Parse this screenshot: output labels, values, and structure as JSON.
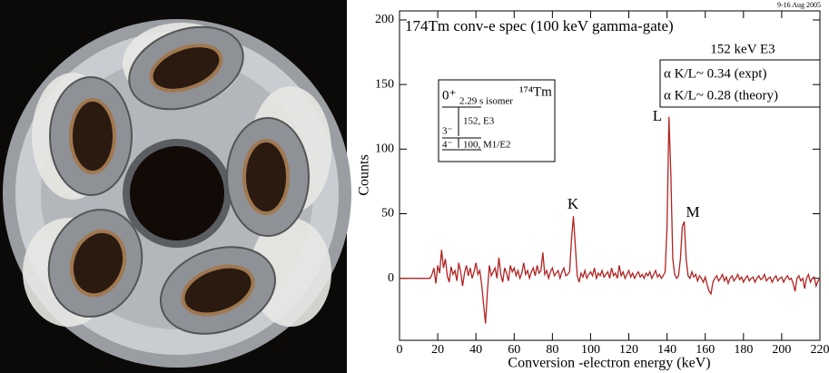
{
  "chart_data": {
    "type": "line",
    "title": "174Tm conv-e spec (100 keV gamma-gate)",
    "date": "9-16 Aug 2005",
    "xlabel": "Conversion -electron energy (keV)",
    "ylabel": "Counts",
    "annotations": {
      "gate": "152 keV E3",
      "expt": "α K/L~ 0.34 (expt)",
      "theory": "α K/L~ 0.28 (theory)",
      "peaks": [
        "K",
        "L",
        "M"
      ],
      "scheme": [
        "0⁺",
        "2.29 s isomer",
        "¹⁷⁴Tm",
        "3⁻",
        "152, E3",
        "4⁻",
        "100, M1/E2"
      ]
    },
    "color": "#b22222",
    "xlim": [
      0,
      220
    ],
    "xticks": [
      0,
      20,
      40,
      60,
      80,
      100,
      120,
      140,
      160,
      180,
      200,
      220
    ],
    "ylim": [
      -48,
      207
    ],
    "yticks": [
      0,
      50,
      100,
      150,
      200
    ],
    "x": [
      0,
      16,
      17,
      18,
      19,
      20,
      21,
      22,
      23,
      24,
      25,
      26,
      27,
      28,
      29,
      30,
      31,
      32,
      33,
      34,
      35,
      36,
      37,
      38,
      39,
      40,
      41,
      42,
      43,
      44,
      45,
      46,
      47,
      48,
      49,
      50,
      51,
      52,
      53,
      54,
      55,
      56,
      57,
      58,
      59,
      60,
      61,
      62,
      63,
      64,
      65,
      66,
      67,
      68,
      69,
      70,
      71,
      72,
      73,
      74,
      75,
      76,
      77,
      78,
      79,
      80,
      81,
      82,
      83,
      84,
      85,
      86,
      87,
      88,
      89,
      90,
      91,
      92,
      93,
      94,
      95,
      96,
      97,
      98,
      99,
      100,
      101,
      102,
      103,
      104,
      105,
      106,
      107,
      108,
      109,
      110,
      111,
      112,
      113,
      114,
      115,
      116,
      117,
      118,
      119,
      120,
      121,
      122,
      123,
      124,
      125,
      126,
      127,
      128,
      129,
      130,
      131,
      132,
      133,
      134,
      135,
      136,
      137,
      138,
      139,
      140,
      141,
      142,
      143,
      144,
      145,
      146,
      147,
      148,
      149,
      150,
      151,
      152,
      153,
      154,
      155,
      156,
      157,
      158,
      159,
      160,
      161,
      162,
      163,
      164,
      165,
      166,
      167,
      168,
      169,
      170,
      171,
      172,
      173,
      174,
      175,
      176,
      177,
      178,
      179,
      180,
      181,
      182,
      183,
      184,
      185,
      186,
      187,
      188,
      189,
      190,
      191,
      192,
      193,
      194,
      195,
      196,
      197,
      198,
      199,
      200,
      201,
      202,
      203,
      204,
      205,
      206,
      207,
      208,
      209,
      210,
      211,
      212,
      213,
      214,
      215,
      216,
      217,
      218,
      219,
      220
    ],
    "values": [
      0,
      0,
      3,
      8,
      -4,
      10,
      4,
      22,
      8,
      15,
      2,
      -3,
      9,
      3,
      6,
      -2,
      12,
      5,
      -6,
      4,
      10,
      2,
      8,
      0,
      5,
      12,
      3,
      6,
      -5,
      -20,
      -35,
      -10,
      10,
      2,
      5,
      8,
      0,
      16,
      3,
      -3,
      8,
      4,
      -2,
      10,
      5,
      8,
      2,
      6,
      0,
      4,
      12,
      3,
      6,
      0,
      5,
      8,
      2,
      10,
      4,
      6,
      20,
      3,
      6,
      0,
      5,
      8,
      2,
      4,
      6,
      0,
      5,
      8,
      2,
      3,
      5,
      30,
      48,
      25,
      2,
      -3,
      4,
      1,
      6,
      0,
      3,
      5,
      2,
      8,
      0,
      4,
      2,
      6,
      1,
      3,
      5,
      0,
      8,
      2,
      4,
      0,
      10,
      2,
      5,
      0,
      3,
      6,
      1,
      4,
      0,
      3,
      5,
      1,
      3,
      0,
      4,
      2,
      5,
      0,
      3,
      6,
      1,
      3,
      0,
      2,
      5,
      40,
      125,
      80,
      15,
      3,
      0,
      2,
      15,
      40,
      44,
      15,
      2,
      0,
      5,
      1,
      3,
      -2,
      2,
      0,
      -3,
      1,
      -5,
      -10,
      -12,
      -3,
      0,
      2,
      -2,
      0,
      3,
      -2,
      1,
      -4,
      0,
      2,
      -2,
      0,
      3,
      -1,
      1,
      -3,
      0,
      2,
      -2,
      0,
      1,
      -3,
      0,
      2,
      -1,
      0,
      3,
      -2,
      0,
      1,
      -3,
      0,
      2,
      -2,
      0,
      1,
      -3,
      0,
      2,
      -1,
      0,
      -4,
      -10,
      0,
      2,
      -2,
      0,
      -8,
      0,
      3,
      -3,
      0,
      1,
      -6,
      -2,
      0
    ]
  }
}
